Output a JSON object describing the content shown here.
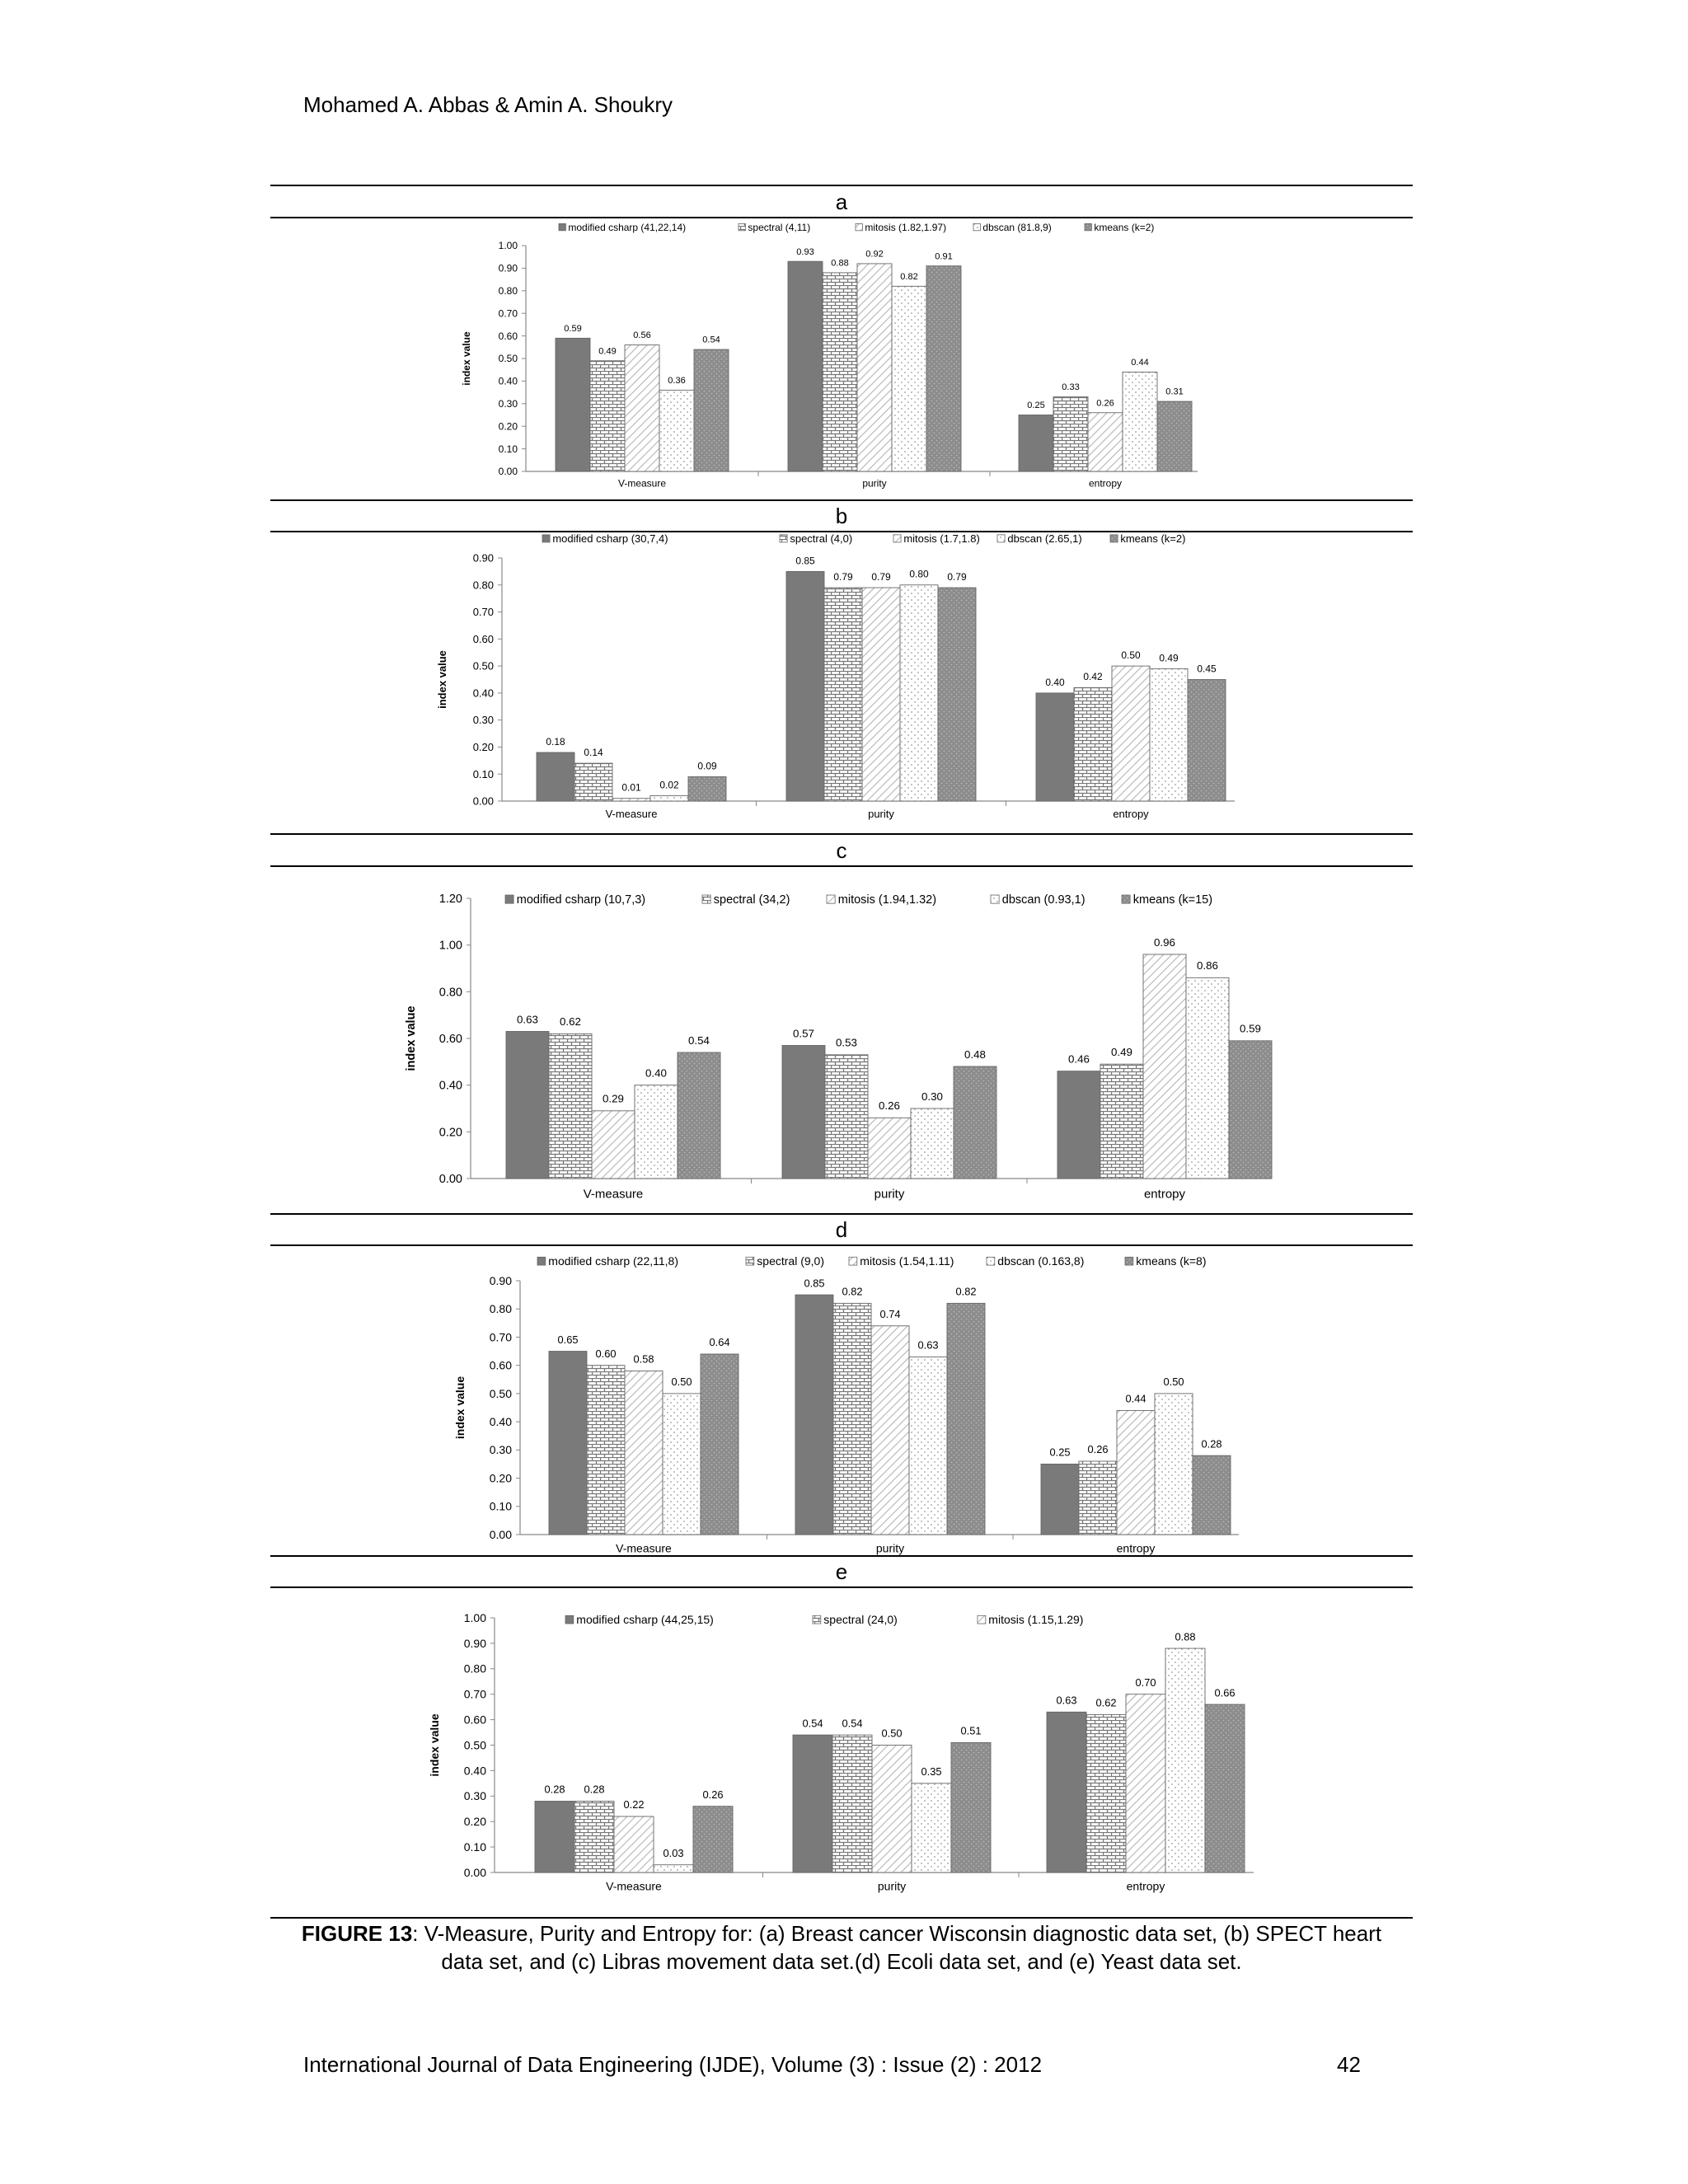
{
  "page": {
    "header": "Mohamed A. Abbas & Amin A. Shoukry",
    "caption_label": "FIGURE 13",
    "caption_text": ": V-Measure, Purity and Entropy for: (a) Breast cancer Wisconsin diagnostic data set, (b) SPECT heart data set, and (c) Libras movement data set.(d) Ecoli data set, and (e) Yeast data set.",
    "footer": "International Journal of Data Engineering (IJDE), Volume (3) : Issue (2) : 2012",
    "page_number": "42"
  },
  "chart_data": [
    {
      "panel": "a",
      "type": "bar",
      "ylabel": "index value",
      "ylim": [
        0,
        1.0
      ],
      "yticks": [
        "0.00",
        "0.10",
        "0.20",
        "0.30",
        "0.40",
        "0.50",
        "0.60",
        "0.70",
        "0.80",
        "0.90",
        "1.00"
      ],
      "categories": [
        "V-measure",
        "purity",
        "entropy"
      ],
      "legend_position": "top",
      "series": [
        {
          "name": "modified csharp (41,22,14)",
          "values": [
            0.59,
            0.93,
            0.25
          ],
          "labels": [
            "0.59",
            "0.93",
            "0.25"
          ]
        },
        {
          "name": "spectral (4,11)",
          "values": [
            0.49,
            0.88,
            0.33
          ],
          "labels": [
            "0.49",
            "0.88",
            "0.33"
          ]
        },
        {
          "name": "mitosis (1.82,1.97)",
          "values": [
            0.56,
            0.92,
            0.26
          ],
          "labels": [
            "0.56",
            "0.92",
            "0.26"
          ]
        },
        {
          "name": "dbscan (81.8,9)",
          "values": [
            0.36,
            0.82,
            0.44
          ],
          "labels": [
            "0.36",
            "0.82",
            "0.44"
          ]
        },
        {
          "name": "kmeans (k=2)",
          "values": [
            0.54,
            0.91,
            0.31
          ],
          "labels": [
            "0.54",
            "0.91",
            "0.31"
          ]
        }
      ]
    },
    {
      "panel": "b",
      "type": "bar",
      "ylabel": "index value",
      "ylim": [
        0,
        0.9
      ],
      "yticks": [
        "0.00",
        "0.10",
        "0.20",
        "0.30",
        "0.40",
        "0.50",
        "0.60",
        "0.70",
        "0.80",
        "0.90"
      ],
      "categories": [
        "V-measure",
        "purity",
        "entropy"
      ],
      "legend_position": "top",
      "series": [
        {
          "name": "modified csharp (30,7,4)",
          "values": [
            0.18,
            0.85,
            0.4
          ],
          "labels": [
            "0.18",
            "0.85",
            "0.40"
          ]
        },
        {
          "name": "spectral (4,0)",
          "values": [
            0.14,
            0.79,
            0.42
          ],
          "labels": [
            "0.14",
            "0.79",
            "0.42"
          ]
        },
        {
          "name": "mitosis (1.7,1.8)",
          "values": [
            0.01,
            0.79,
            0.5
          ],
          "labels": [
            "0.01",
            "0.79",
            "0.50"
          ]
        },
        {
          "name": "dbscan (2.65,1)",
          "values": [
            0.02,
            0.8,
            0.49
          ],
          "labels": [
            "0.02",
            "0.80",
            "0.49"
          ]
        },
        {
          "name": "kmeans (k=2)",
          "values": [
            0.09,
            0.79,
            0.45
          ],
          "labels": [
            "0.09",
            "0.79",
            "0.45"
          ]
        }
      ]
    },
    {
      "panel": "c",
      "type": "bar",
      "ylabel": "index value",
      "ylim": [
        0,
        1.2
      ],
      "yticks": [
        "0.00",
        "0.20",
        "0.40",
        "0.60",
        "0.80",
        "1.00",
        "1.20"
      ],
      "categories": [
        "V-measure",
        "purity",
        "entropy"
      ],
      "legend_position": "top",
      "series": [
        {
          "name": "modified csharp (10,7,3)",
          "values": [
            0.63,
            0.57,
            0.46
          ],
          "labels": [
            "0.63",
            "0.57",
            "0.46"
          ]
        },
        {
          "name": "spectral (34,2)",
          "values": [
            0.62,
            0.53,
            0.49
          ],
          "labels": [
            "0.62",
            "0.53",
            "0.49"
          ]
        },
        {
          "name": "mitosis (1.94,1.32)",
          "values": [
            0.29,
            0.26,
            0.96
          ],
          "labels": [
            "0.29",
            "0.26",
            "0.96"
          ]
        },
        {
          "name": "dbscan (0.93,1)",
          "values": [
            0.4,
            0.3,
            0.86
          ],
          "labels": [
            "0.40",
            "0.30",
            "0.86"
          ]
        },
        {
          "name": "kmeans (k=15)",
          "values": [
            0.54,
            0.48,
            0.59
          ],
          "labels": [
            "0.54",
            "0.48",
            "0.59"
          ]
        }
      ]
    },
    {
      "panel": "d",
      "type": "bar",
      "ylabel": "index value",
      "ylim": [
        0,
        0.9
      ],
      "yticks": [
        "0.00",
        "0.10",
        "0.20",
        "0.30",
        "0.40",
        "0.50",
        "0.60",
        "0.70",
        "0.80",
        "0.90"
      ],
      "categories": [
        "V-measure",
        "purity",
        "entropy"
      ],
      "legend_position": "top",
      "series": [
        {
          "name": "modified csharp (22,11,8)",
          "values": [
            0.65,
            0.85,
            0.25
          ],
          "labels": [
            "0.65",
            "0.85",
            "0.25"
          ]
        },
        {
          "name": "spectral (9,0)",
          "values": [
            0.6,
            0.82,
            0.26
          ],
          "labels": [
            "0.60",
            "0.82",
            "0.26"
          ]
        },
        {
          "name": "mitosis (1.54,1.11)",
          "values": [
            0.58,
            0.74,
            0.44
          ],
          "labels": [
            "0.58",
            "0.74",
            "0.44"
          ]
        },
        {
          "name": "dbscan (0.163,8)",
          "values": [
            0.5,
            0.63,
            0.5
          ],
          "labels": [
            "0.50",
            "0.63",
            "0.50"
          ]
        },
        {
          "name": "kmeans (k=8)",
          "values": [
            0.64,
            0.82,
            0.28
          ],
          "labels": [
            "0.64",
            "0.82",
            "0.28"
          ]
        }
      ]
    },
    {
      "panel": "e",
      "type": "bar",
      "ylabel": "index value",
      "ylim": [
        0,
        1.0
      ],
      "yticks": [
        "0.00",
        "0.10",
        "0.20",
        "0.30",
        "0.40",
        "0.50",
        "0.60",
        "0.70",
        "0.80",
        "0.90",
        "1.00"
      ],
      "categories": [
        "V-measure",
        "purity",
        "entropy"
      ],
      "legend_position": "top",
      "series": [
        {
          "name": "modified csharp (44,25,15)",
          "values": [
            0.28,
            0.54,
            0.63
          ],
          "labels": [
            "0.28",
            "0.54",
            "0.63"
          ]
        },
        {
          "name": "spectral (24,0)",
          "values": [
            0.28,
            0.54,
            0.62
          ],
          "labels": [
            "0.28",
            "0.54",
            "0.62"
          ]
        },
        {
          "name": "mitosis (1.15,1.29)",
          "values": [
            0.22,
            0.5,
            0.7
          ],
          "labels": [
            "0.22",
            "0.50",
            "0.70"
          ]
        },
        {
          "name": "",
          "values": [
            0.03,
            0.35,
            0.88
          ],
          "labels": [
            "0.03",
            "0.35",
            "0.88"
          ]
        },
        {
          "name": "",
          "values": [
            0.26,
            0.51,
            0.66
          ],
          "labels": [
            "0.26",
            "0.51",
            "0.66"
          ]
        }
      ]
    }
  ]
}
